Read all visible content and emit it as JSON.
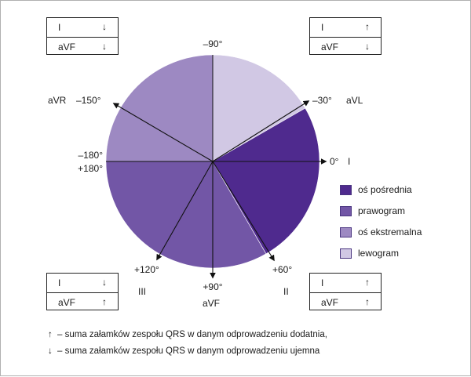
{
  "palette": {
    "os_posrednia": "#4f2a8e",
    "prawogram": "#7256a6",
    "os_ekstremalna": "#9d89c2",
    "lewogram": "#d1c8e4",
    "line": "#111111"
  },
  "degree_labels": {
    "minus90": "–90°",
    "minus30": "–30°",
    "zero": "0°",
    "plus60": "+60°",
    "plus90": "+90°",
    "plus120": "+120°",
    "minus150": "–150°",
    "minus180": "–180°",
    "plus180": "+180°"
  },
  "lead_labels": {
    "avl": "aVL",
    "i": "I",
    "ii": "II",
    "avf": "aVF",
    "iii": "III",
    "avr": "aVR"
  },
  "sign_boxes": {
    "top_left": [
      {
        "lead": "I",
        "arrow": "↓"
      },
      {
        "lead": "aVF",
        "arrow": "↓"
      }
    ],
    "top_right": [
      {
        "lead": "I",
        "arrow": "↑"
      },
      {
        "lead": "aVF",
        "arrow": "↓"
      }
    ],
    "bottom_left": [
      {
        "lead": "I",
        "arrow": "↓"
      },
      {
        "lead": "aVF",
        "arrow": "↑"
      }
    ],
    "bottom_right": [
      {
        "lead": "I",
        "arrow": "↑"
      },
      {
        "lead": "aVF",
        "arrow": "↑"
      }
    ]
  },
  "legend": [
    {
      "label": "oś pośrednia",
      "color": "#4f2a8e"
    },
    {
      "label": "prawogram",
      "color": "#7256a6"
    },
    {
      "label": "oś ekstremalna",
      "color": "#9d89c2"
    },
    {
      "label": "lewogram",
      "color": "#d1c8e4"
    }
  ],
  "footnotes": [
    {
      "arrow": "↑",
      "text": "– suma załamków zespołu QRS w danym odprowadzeniu dodatnia,"
    },
    {
      "arrow": "↓",
      "text": "– suma załamków zespołu QRS w danym odprowadzeniu ujemna"
    }
  ]
}
